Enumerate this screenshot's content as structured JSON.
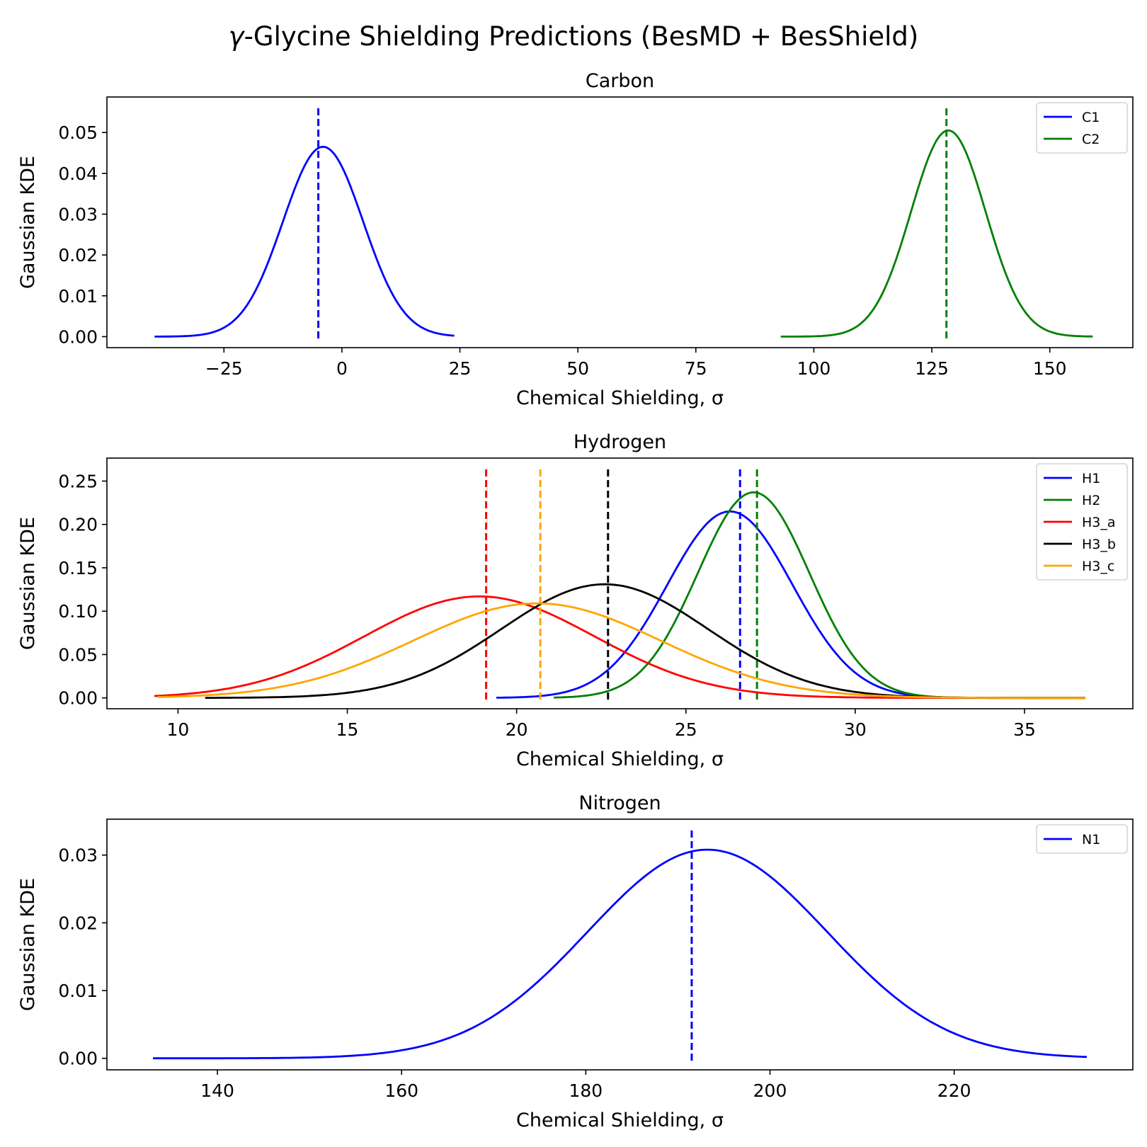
{
  "figure": {
    "title_prefix": "γ",
    "title_rest": "-Glycine Shielding Predictions (BesMD + BesShield)"
  },
  "chart_data": [
    {
      "type": "line",
      "title": "Carbon",
      "xlabel": "Chemical Shielding, σ",
      "ylabel": "Gaussian KDE",
      "xlim": [
        -49.8,
        167.6
      ],
      "ylim": [
        -0.0027,
        0.0587
      ],
      "xticks": [
        -25,
        0,
        25,
        50,
        75,
        100,
        125,
        150
      ],
      "xtick_labels": [
        "−25",
        "0",
        "25",
        "50",
        "75",
        "100",
        "125",
        "150"
      ],
      "yticks": [
        0,
        0.01,
        0.02,
        0.03,
        0.04,
        0.05
      ],
      "ytick_labels": [
        "0.00",
        "0.01",
        "0.02",
        "0.03",
        "0.04",
        "0.05"
      ],
      "legend_position": "upper right",
      "series": [
        {
          "name": "C1",
          "color": "#0000ff",
          "x_range": [
            -39.7,
            23.8
          ],
          "peak_x": -4.0,
          "peak_y": 0.0465,
          "sigma": 8.5,
          "vline_x": -5.0
        },
        {
          "name": "C2",
          "color": "#008000",
          "x_range": [
            93.0,
            159.1
          ],
          "peak_x": 128.5,
          "peak_y": 0.0505,
          "sigma": 7.9,
          "vline_x": 128.1
        }
      ]
    },
    {
      "type": "line",
      "title": "Hydrogen",
      "xlabel": "Chemical Shielding, σ",
      "ylabel": "Gaussian KDE",
      "xlim": [
        7.9,
        38.2
      ],
      "ylim": [
        -0.0125,
        0.2765
      ],
      "xticks": [
        10,
        15,
        20,
        25,
        30,
        35
      ],
      "xtick_labels": [
        "10",
        "15",
        "20",
        "25",
        "30",
        "35"
      ],
      "yticks": [
        0,
        0.05,
        0.1,
        0.15,
        0.2,
        0.25
      ],
      "ytick_labels": [
        "0.00",
        "0.05",
        "0.10",
        "0.15",
        "0.20",
        "0.25"
      ],
      "legend_position": "upper right",
      "series": [
        {
          "name": "H1",
          "color": "#0000ff",
          "x_range": [
            19.4,
            36.8
          ],
          "peak_x": 26.3,
          "peak_y": 0.215,
          "sigma": 1.85,
          "vline_x": 26.6
        },
        {
          "name": "H2",
          "color": "#008000",
          "x_range": [
            21.1,
            36.8
          ],
          "peak_x": 27.0,
          "peak_y": 0.237,
          "sigma": 1.65,
          "vline_x": 27.1
        },
        {
          "name": "H3_a",
          "color": "#ff0000",
          "x_range": [
            9.3,
            36.8
          ],
          "peak_x": 18.9,
          "peak_y": 0.117,
          "sigma": 3.4,
          "vline_x": 19.1
        },
        {
          "name": "H3_b",
          "color": "#000000",
          "x_range": [
            10.8,
            36.8
          ],
          "peak_x": 22.6,
          "peak_y": 0.131,
          "sigma": 3.05,
          "vline_x": 22.7
        },
        {
          "name": "H3_c",
          "color": "#ffa500",
          "x_range": [
            9.4,
            36.8
          ],
          "peak_x": 20.6,
          "peak_y": 0.109,
          "sigma": 3.65,
          "vline_x": 20.7
        }
      ]
    },
    {
      "type": "line",
      "title": "Nitrogen",
      "xlabel": "Chemical Shielding, σ",
      "ylabel": "Gaussian KDE",
      "xlim": [
        128.0,
        239.4
      ],
      "ylim": [
        -0.0017,
        0.0353
      ],
      "xticks": [
        140,
        160,
        180,
        200,
        220
      ],
      "xtick_labels": [
        "140",
        "160",
        "180",
        "200",
        "220"
      ],
      "yticks": [
        0,
        0.01,
        0.02,
        0.03
      ],
      "ytick_labels": [
        "0.00",
        "0.01",
        "0.02",
        "0.03"
      ],
      "legend_position": "upper right",
      "series": [
        {
          "name": "N1",
          "color": "#0000ff",
          "x_range": [
            133.0,
            234.4
          ],
          "peak_x": 193.2,
          "peak_y": 0.0308,
          "sigma": 13.0,
          "vline_x": 191.5
        }
      ]
    }
  ]
}
